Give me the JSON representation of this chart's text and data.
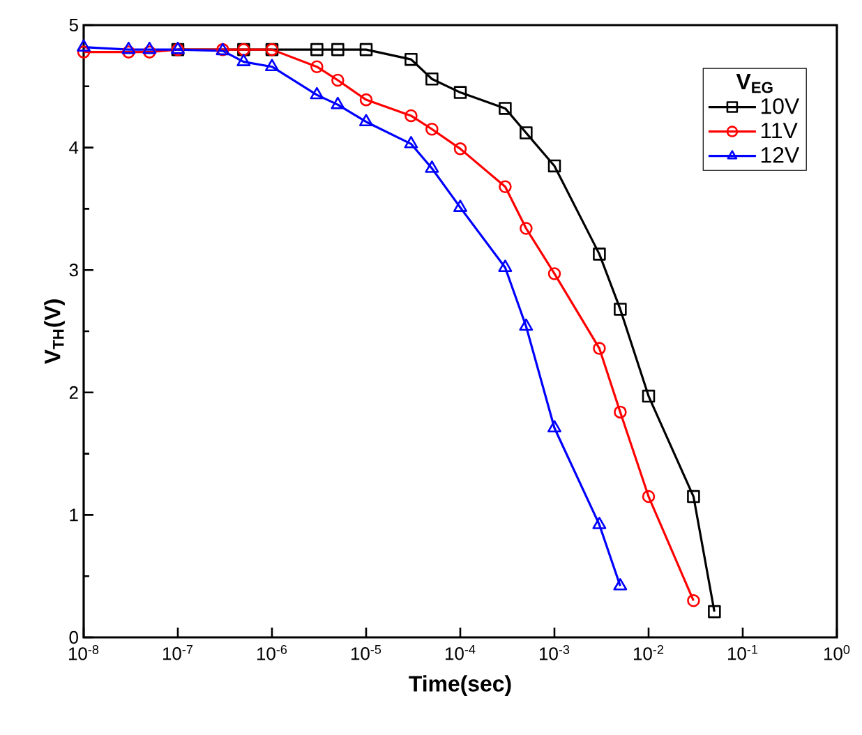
{
  "chart_data": {
    "type": "line",
    "xlabel": "Time(sec)",
    "ylabel": "V$_{TH}$(V)",
    "legend_title": "V$_{EG}$",
    "log": "x",
    "xlim": [
      1e-08,
      1
    ],
    "ylim": [
      0,
      5
    ],
    "xticks": [
      {
        "value": 1e-08,
        "label": "10$^{-8}$"
      },
      {
        "value": 1e-07,
        "label": "10$^{-7}$"
      },
      {
        "value": 1e-06,
        "label": "10$^{-6}$"
      },
      {
        "value": 1e-05,
        "label": "10$^{-5}$"
      },
      {
        "value": 0.0001,
        "label": "10$^{-4}$"
      },
      {
        "value": 0.001,
        "label": "10$^{-3}$"
      },
      {
        "value": 0.01,
        "label": "10$^{-2}$"
      },
      {
        "value": 0.1,
        "label": "10$^{-1}$"
      },
      {
        "value": 1,
        "label": "10$^{0}$"
      }
    ],
    "yticks": [
      0,
      1,
      2,
      3,
      4,
      5
    ],
    "grid": false,
    "legend": "top right",
    "series": [
      {
        "name": "10V",
        "color": "#000000",
        "marker": "square",
        "x": [
          1e-07,
          5e-07,
          1e-06,
          3e-06,
          5e-06,
          1e-05,
          3e-05,
          5e-05,
          0.0001,
          0.0003,
          0.0005,
          0.001,
          0.003,
          0.005,
          0.01,
          0.03,
          0.05
        ],
        "values": [
          4.8,
          4.8,
          4.8,
          4.8,
          4.8,
          4.8,
          4.72,
          4.56,
          4.45,
          4.32,
          4.12,
          3.85,
          3.13,
          2.68,
          1.97,
          1.15,
          0.21
        ]
      },
      {
        "name": "11V",
        "color": "#ff0000",
        "marker": "circle",
        "x": [
          1e-08,
          3e-08,
          5e-08,
          1e-07,
          3e-07,
          5e-07,
          1e-06,
          3e-06,
          5e-06,
          1e-05,
          3e-05,
          5e-05,
          0.0001,
          0.0003,
          0.0005,
          0.001,
          0.003,
          0.005,
          0.01,
          0.03
        ],
        "values": [
          4.78,
          4.78,
          4.78,
          4.8,
          4.8,
          4.8,
          4.8,
          4.66,
          4.55,
          4.39,
          4.26,
          4.15,
          3.99,
          3.68,
          3.34,
          2.97,
          2.36,
          1.84,
          1.15,
          0.3
        ]
      },
      {
        "name": "12V",
        "color": "#0000ff",
        "marker": "triangle",
        "x": [
          1e-08,
          3e-08,
          5e-08,
          1e-07,
          3e-07,
          5e-07,
          1e-06,
          3e-06,
          5e-06,
          1e-05,
          3e-05,
          5e-05,
          0.0001,
          0.0003,
          0.0005,
          0.001,
          0.003,
          0.005
        ],
        "values": [
          4.82,
          4.8,
          4.8,
          4.8,
          4.79,
          4.7,
          4.66,
          4.43,
          4.35,
          4.21,
          4.03,
          3.83,
          3.51,
          3.02,
          2.54,
          1.71,
          0.92,
          0.42
        ]
      }
    ]
  }
}
